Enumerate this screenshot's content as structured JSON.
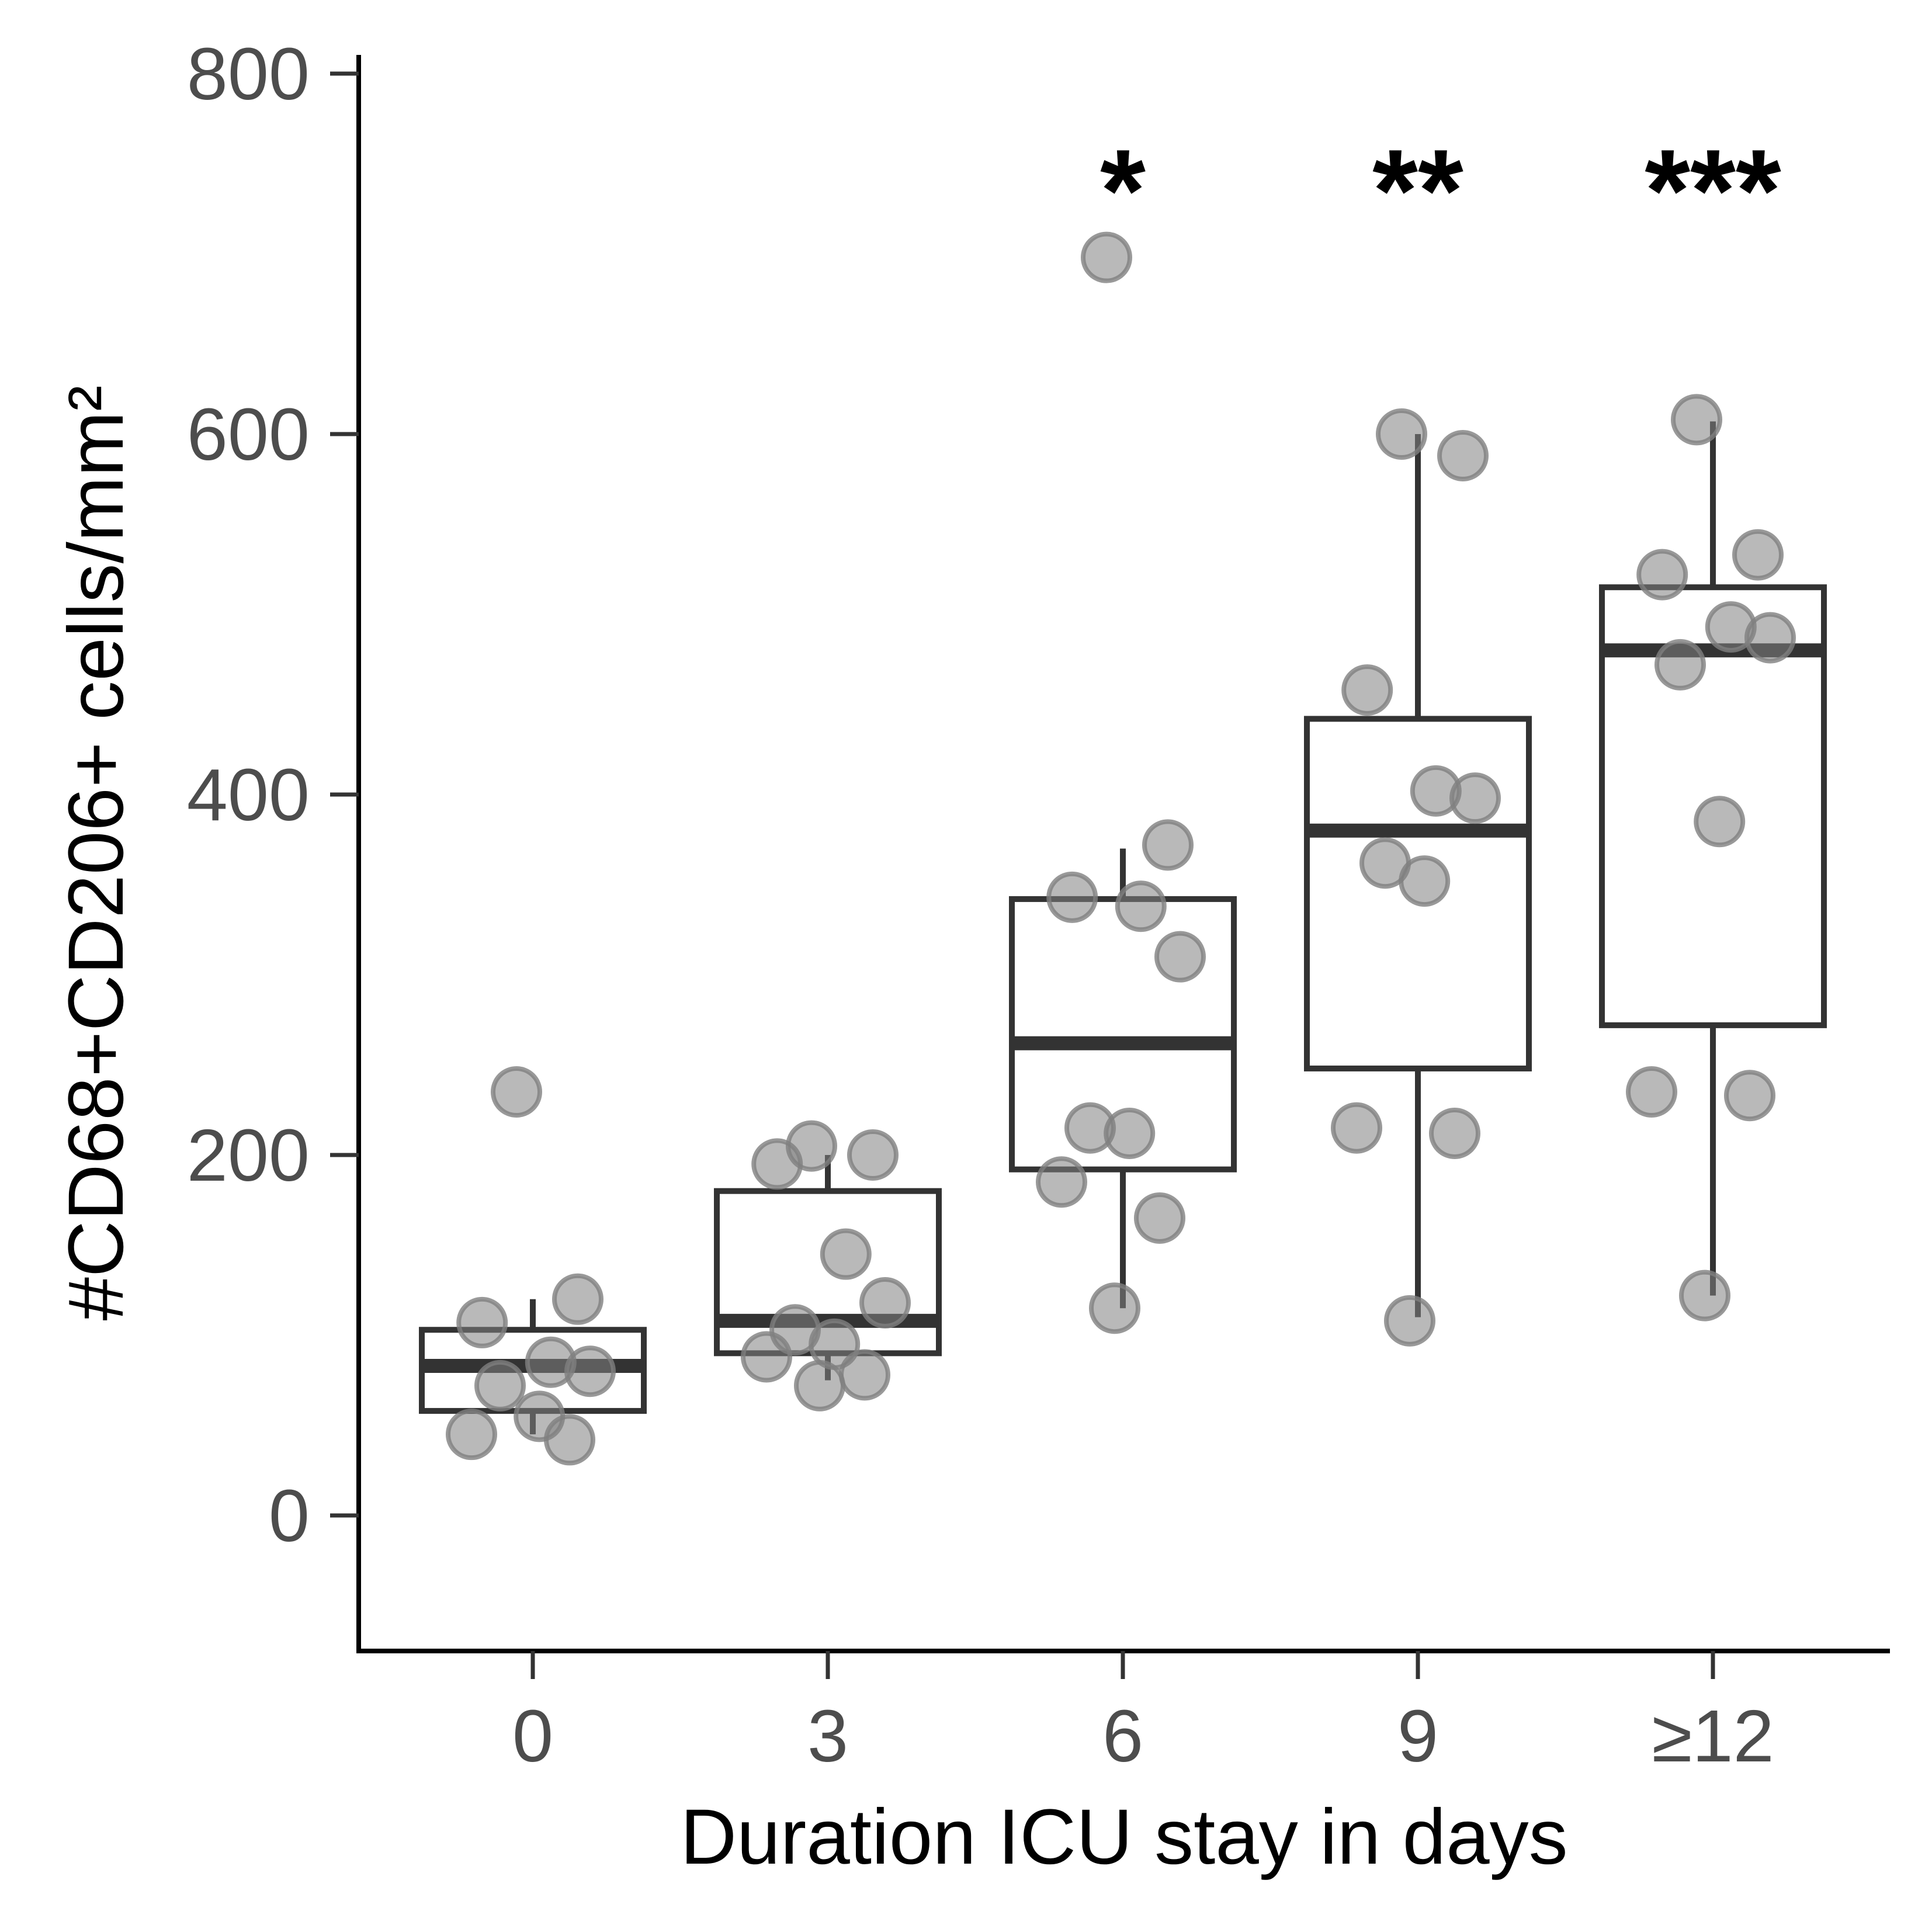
{
  "chart_data": {
    "type": "boxplot",
    "xlabel": "Duration ICU stay in days",
    "ylabel": "#CD68+CD206+ cells/mm²",
    "categories": [
      "0",
      "3",
      "6",
      "9",
      "≥12"
    ],
    "y_ticks": [
      "0",
      "200",
      "400",
      "600",
      "800"
    ],
    "ylim": [
      -75,
      805
    ],
    "grid": false,
    "legend": "none",
    "boxes": [
      {
        "category": "0",
        "whisker_low": 45,
        "q1": 58,
        "median": 83,
        "q3": 103,
        "whisker_high": 120
      },
      {
        "category": "3",
        "whisker_low": 75,
        "q1": 90,
        "median": 108,
        "q3": 180,
        "whisker_high": 200
      },
      {
        "category": "6",
        "whisker_low": 115,
        "q1": 192,
        "median": 262,
        "q3": 342,
        "whisker_high": 370
      },
      {
        "category": "9",
        "whisker_low": 110,
        "q1": 248,
        "median": 380,
        "q3": 442,
        "whisker_high": 600
      },
      {
        "category": "≥12",
        "whisker_low": 122,
        "q1": 272,
        "median": 480,
        "q3": 515,
        "whisker_high": 607
      }
    ],
    "points": [
      {
        "category": "0",
        "values": [
          235,
          120,
          107,
          85,
          80,
          72,
          55,
          45,
          42
        ]
      },
      {
        "category": "3",
        "values": [
          205,
          200,
          195,
          145,
          118,
          103,
          95,
          88,
          78,
          72
        ]
      },
      {
        "category": "6",
        "values": [
          698,
          372,
          343,
          338,
          310,
          215,
          212,
          185,
          165,
          115
        ]
      },
      {
        "category": "9",
        "values": [
          600,
          588,
          458,
          402,
          398,
          362,
          352,
          215,
          212,
          108
        ]
      },
      {
        "category": "≥12",
        "values": [
          608,
          533,
          522,
          493,
          487,
          472,
          385,
          235,
          233,
          122
        ]
      }
    ],
    "significance": [
      {
        "category": "6",
        "label": "*"
      },
      {
        "category": "9",
        "label": "**"
      },
      {
        "category": "≥12",
        "label": "***"
      }
    ],
    "colors": {
      "box": "#333333",
      "point_fill": "#808080",
      "axis": "#000000",
      "tick_label": "#4d4d4d"
    }
  }
}
